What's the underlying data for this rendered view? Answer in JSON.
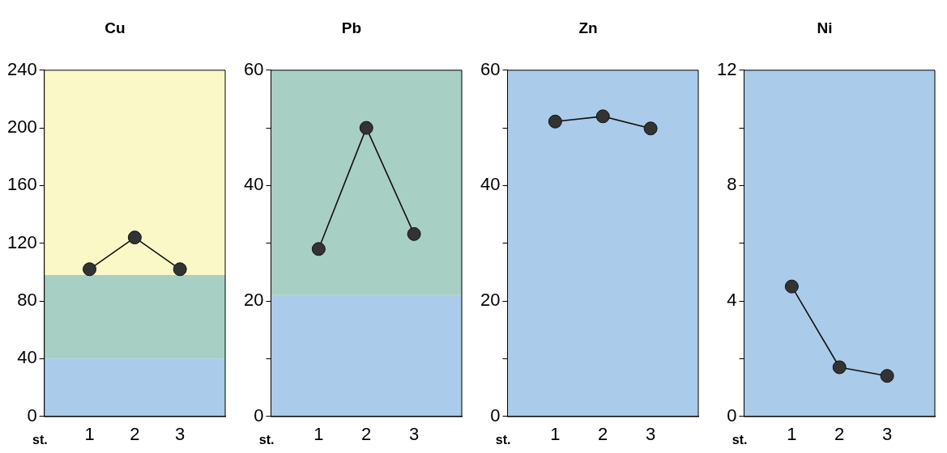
{
  "chart_data": [
    {
      "type": "line",
      "title": "Cu",
      "xlabel": "st.",
      "x": [
        1,
        2,
        3
      ],
      "xlim": [
        0,
        4
      ],
      "xticks": [
        1,
        2,
        3
      ],
      "ylim": [
        0,
        240
      ],
      "yticks": [
        0,
        40,
        80,
        120,
        160,
        200,
        240
      ],
      "grid": false,
      "legend": false,
      "marker": "circle",
      "line_style": "solid",
      "series": [
        {
          "color": "#333333",
          "values": [
            102,
            124,
            102
          ]
        }
      ],
      "bands": [
        {
          "axis": "y",
          "from": 0,
          "to": 40,
          "color": "#aacbea"
        },
        {
          "axis": "y",
          "from": 40,
          "to": 98,
          "color": "#a8cfc4"
        },
        {
          "axis": "y",
          "from": 98,
          "to": 240,
          "color": "#fbf8c8"
        }
      ]
    },
    {
      "type": "line",
      "title": "Pb",
      "xlabel": "st.",
      "x": [
        1,
        2,
        3
      ],
      "xlim": [
        0,
        4
      ],
      "xticks": [
        1,
        2,
        3
      ],
      "ylim": [
        0,
        60
      ],
      "yticks": [
        0,
        {
          "value": 10,
          "label": null
        },
        20,
        {
          "value": 30,
          "label": null
        },
        40,
        {
          "value": 50,
          "label": null
        },
        60
      ],
      "grid": false,
      "legend": false,
      "marker": "circle",
      "line_style": "solid",
      "series": [
        {
          "color": "#333333",
          "values": [
            29,
            50,
            31.6
          ]
        }
      ],
      "bands": [
        {
          "axis": "y",
          "from": 0,
          "to": 21,
          "color": "#aacbea"
        },
        {
          "axis": "y",
          "from": 21,
          "to": 60,
          "color": "#a8cfc4"
        }
      ]
    },
    {
      "type": "line",
      "title": "Zn",
      "xlabel": "st.",
      "x": [
        1,
        2,
        3
      ],
      "xlim": [
        0,
        4
      ],
      "xticks": [
        1,
        2,
        3
      ],
      "ylim": [
        0,
        60
      ],
      "yticks": [
        0,
        {
          "value": 10,
          "label": null
        },
        20,
        {
          "value": 30,
          "label": null
        },
        40,
        {
          "value": 50,
          "label": null
        },
        60
      ],
      "grid": false,
      "legend": false,
      "marker": "circle",
      "line_style": "solid",
      "series": [
        {
          "color": "#333333",
          "values": [
            51.1,
            52,
            49.9
          ]
        }
      ],
      "bands": [
        {
          "axis": "y",
          "from": 0,
          "to": 60,
          "color": "#aacbea"
        }
      ]
    },
    {
      "type": "line",
      "title": "Ni",
      "xlabel": "st.",
      "x": [
        1,
        2,
        3
      ],
      "xlim": [
        0,
        4
      ],
      "xticks": [
        1,
        2,
        3
      ],
      "ylim": [
        0,
        12
      ],
      "yticks": [
        0,
        {
          "value": 2,
          "label": null
        },
        4,
        {
          "value": 6,
          "label": null
        },
        8,
        {
          "value": 10,
          "label": null
        },
        12
      ],
      "grid": false,
      "legend": false,
      "marker": "circle",
      "line_style": "solid",
      "series": [
        {
          "color": "#333333",
          "values": [
            4.5,
            1.7,
            1.4
          ]
        }
      ],
      "bands": [
        {
          "axis": "y",
          "from": 0,
          "to": 12,
          "color": "#aacbea"
        }
      ]
    }
  ]
}
